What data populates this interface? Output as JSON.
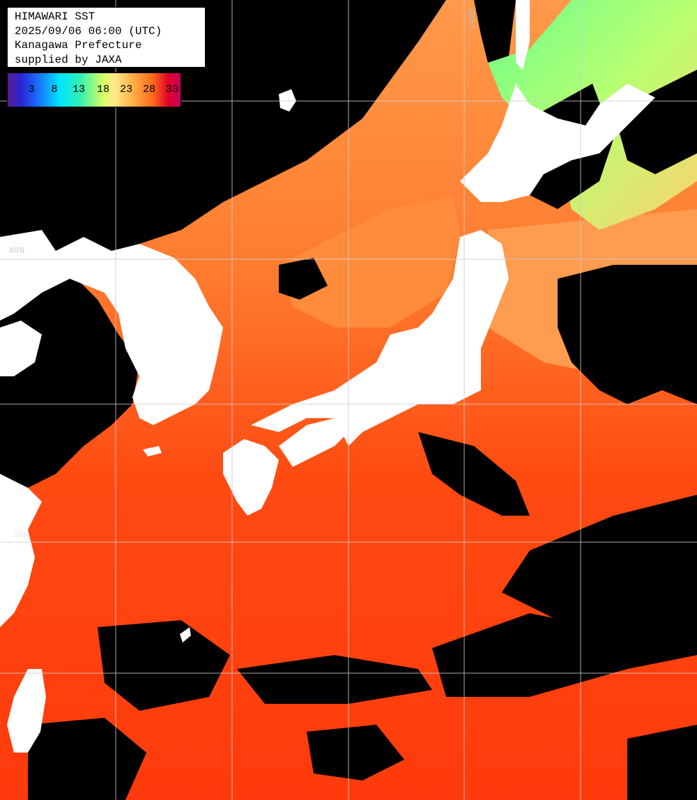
{
  "title": {
    "line1": "HIMAWARI SST",
    "line2": "2025/09/06 06:00 (UTC)",
    "line3": "Kanagawa Prefecture",
    "line4": "supplied by JAXA"
  },
  "legend": {
    "ticks": [
      "3",
      "8",
      "13",
      "18",
      "23",
      "28",
      "33"
    ]
  },
  "grid_labels": {
    "lon_140": "140E",
    "lat_40": "40N",
    "lat_30": "30N"
  },
  "colors": {
    "land": "#ffffff",
    "cloud_no_data": "#000000",
    "sea_warm": "#ff4a10",
    "sea_mild": "#ff8a3a",
    "sea_cool": "#8aff7a",
    "grid": "#cccccc"
  }
}
